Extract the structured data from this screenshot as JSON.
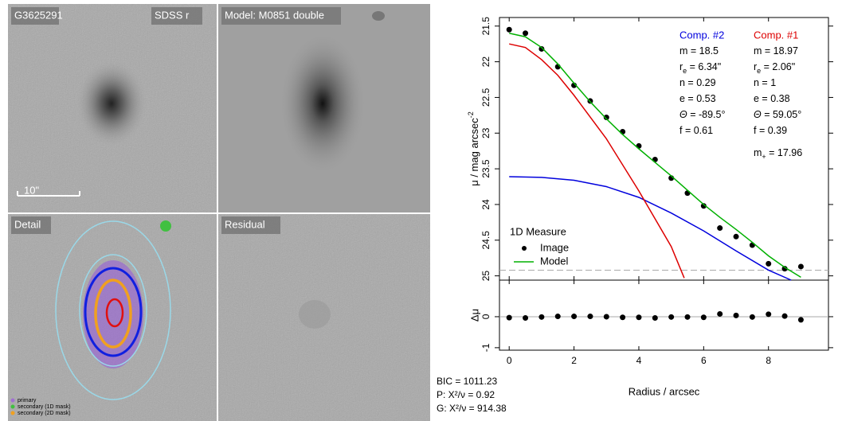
{
  "panels": [
    {
      "label": "G3625291"
    },
    {
      "label": "SDSS r"
    },
    {
      "label": "Model: M0851 double"
    },
    {
      "label": "Detail"
    },
    {
      "label": "Residual"
    }
  ],
  "scale_label": "10\"",
  "mask_legend": [
    {
      "name": "primary",
      "color": "#a070d0"
    },
    {
      "name": "secondary (1D mask)",
      "color": "#40c040"
    },
    {
      "name": "secondary (2D mask)",
      "color": "#f0a020"
    }
  ],
  "fit_stats": [
    "BIC = 1011.23",
    "P: X²/ν = 0.92",
    "G: X²/ν = 914.38"
  ],
  "chart_data": [
    {
      "type": "line",
      "ylabel": {
        "text": "μ / mag arcsec",
        "sup": "-2"
      },
      "xlim": [
        -0.3,
        9.85
      ],
      "xticks": [
        0,
        2,
        4,
        6,
        8
      ],
      "ylim": [
        21.38,
        25.06
      ],
      "yticks": [
        21.5,
        22,
        22.5,
        23,
        23.5,
        24,
        24.5,
        25
      ],
      "y_inverted": true,
      "hline": 24.92,
      "legend_title": "1D Measure",
      "series": [
        {
          "name": "Image",
          "color": "#000000",
          "style": "points",
          "x": [
            0,
            0.5,
            1,
            1.5,
            2,
            2.5,
            3,
            3.5,
            4,
            4.5,
            5,
            5.5,
            6,
            6.5,
            7,
            7.5,
            8,
            8.5,
            9
          ],
          "values": [
            21.55,
            21.6,
            21.82,
            22.07,
            22.33,
            22.55,
            22.78,
            22.98,
            23.18,
            23.37,
            23.63,
            23.84,
            24.02,
            24.33,
            24.45,
            24.57,
            24.83,
            24.9,
            24.87
          ]
        },
        {
          "name": "Model",
          "color": "#00b000",
          "style": "line",
          "x": [
            0,
            0.5,
            1,
            1.5,
            2,
            2.5,
            3,
            3.5,
            4,
            4.5,
            5,
            5.5,
            6,
            6.5,
            7,
            7.5,
            8,
            8.5,
            9
          ],
          "values": [
            21.6,
            21.65,
            21.8,
            22.03,
            22.3,
            22.56,
            22.8,
            23.02,
            23.22,
            23.41,
            23.6,
            23.8,
            24.0,
            24.18,
            24.35,
            24.53,
            24.72,
            24.88,
            25.02
          ]
        }
      ],
      "components": [
        {
          "name": "Comp. #2",
          "color": "#0000dd",
          "x": [
            0,
            1,
            2,
            3,
            4,
            5,
            6,
            7,
            8,
            8.7
          ],
          "values": [
            23.61,
            23.62,
            23.66,
            23.75,
            23.9,
            24.12,
            24.37,
            24.65,
            24.92,
            25.06
          ],
          "params": [
            {
              "symbol": "m",
              "text": " = 18.5"
            },
            {
              "symbol": "r",
              "sub": "e",
              "text": " = 6.34\""
            },
            {
              "symbol": "n",
              "text": " = 0.29"
            },
            {
              "symbol": "e",
              "text": " = 0.53"
            },
            {
              "symbol": "Θ",
              "text": " = -89.5°"
            },
            {
              "symbol": "f",
              "text": " = 0.61"
            }
          ]
        },
        {
          "name": "Comp. #1",
          "color": "#dd0000",
          "x": [
            0,
            0.5,
            1,
            1.5,
            2,
            3,
            4,
            5,
            5.4
          ],
          "values": [
            21.75,
            21.8,
            21.97,
            22.19,
            22.47,
            23.08,
            23.81,
            24.59,
            25.03
          ],
          "params": [
            {
              "symbol": "m",
              "text": " = 18.97"
            },
            {
              "symbol": "r",
              "sub": "e",
              "text": " = 2.06\""
            },
            {
              "symbol": "n",
              "text": " = 1"
            },
            {
              "symbol": "e",
              "text": " = 0.38"
            },
            {
              "symbol": "Θ",
              "text": " = 59.05°"
            },
            {
              "symbol": "f",
              "text": " = 0.39"
            },
            {
              "symbol": "m",
              "sub": "+",
              "text": " = 17.96"
            }
          ]
        }
      ]
    },
    {
      "type": "scatter",
      "ylabel": "Δμ",
      "xlabel": "Radius / arcsec",
      "xlim": [
        -0.3,
        9.85
      ],
      "xticks": [
        0,
        2,
        4,
        6,
        8
      ],
      "ylim": [
        -1.08,
        1.18
      ],
      "yticks": [
        -1,
        0
      ],
      "hline": 0,
      "color": "#000000",
      "x": [
        0,
        0.5,
        1,
        1.5,
        2,
        2.5,
        3,
        3.5,
        4,
        4.5,
        5,
        5.5,
        6,
        6.5,
        7,
        7.5,
        8,
        8.5,
        9
      ],
      "values": [
        -0.03,
        -0.04,
        -0.01,
        0.01,
        0.01,
        0.01,
        0.0,
        -0.02,
        -0.02,
        -0.04,
        -0.01,
        -0.01,
        -0.02,
        0.09,
        0.04,
        -0.01,
        0.08,
        0.02,
        -0.1
      ]
    }
  ]
}
